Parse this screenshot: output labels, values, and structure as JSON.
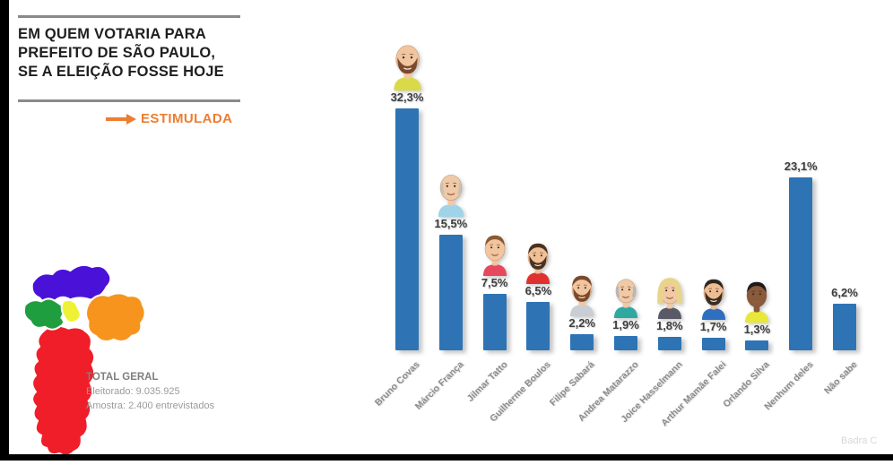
{
  "header": {
    "title_lines": [
      "EM QUEM VOTARIA PARA",
      "PREFEITO DE SÃO PAULO,",
      "SE A ELEIÇÃO FOSSE HOJE"
    ],
    "subtitle": "ESTIMULADA",
    "accent_color": "#ed7d31"
  },
  "summary": {
    "title": "TOTAL GERAL",
    "electorate": "Eleitorado: 9.035.925",
    "sample": "Amostra: 2.400 entrevistados"
  },
  "map": {
    "name": "sao-paulo-zones-map",
    "zone_colors": {
      "north": "#4a12d8",
      "east": "#f7941e",
      "center": "#eff234",
      "west": "#1e9e3e",
      "south": "#f01e28"
    }
  },
  "watermark": "Badra C",
  "chart_data": {
    "type": "bar",
    "title": "EM QUEM VOTARIA PARA PREFEITO DE SÃO PAULO, SE A ELEIÇÃO FOSSE HOJE — ESTIMULADA",
    "categories": [
      "Bruno Covas",
      "Márcio França",
      "Jilmar Tatto",
      "Guilherme Boulos",
      "Filipe Sabará",
      "Andrea Matarazzo",
      "Joice Hasselmann",
      "Arthur Mamãe Falei",
      "Orlando Silva",
      "Nenhum deles",
      "Não sabe"
    ],
    "values": [
      32.3,
      15.5,
      7.5,
      6.5,
      2.2,
      1.9,
      1.8,
      1.7,
      1.3,
      23.1,
      6.2
    ],
    "value_labels": [
      "32,3%",
      "15,5%",
      "7,5%",
      "6,5%",
      "2,2%",
      "1,9%",
      "1,8%",
      "1,7%",
      "1,3%",
      "23,1%",
      "6,2%"
    ],
    "xlabel": "",
    "ylabel": "",
    "ylim": [
      0,
      35
    ],
    "grid": false,
    "legend": false,
    "bar_color": "#2e74b5",
    "value_label_color": "#3f3f3f",
    "axis_label_color": "#8c8c8c",
    "avatars": [
      {
        "style": "bald",
        "skin": "#f2c59e",
        "hair": "#7a4a2b",
        "beard": "#7a4a2b",
        "shirt": "#d9d94a",
        "scale": 1.16
      },
      {
        "style": "balding",
        "skin": "#f0c9a6",
        "hair": "#c9c0b0",
        "beard": null,
        "shirt": "#9fd3e8",
        "scale": 1.08
      },
      {
        "style": "short",
        "skin": "#f2c59e",
        "hair": "#8a5a33",
        "beard": null,
        "shirt": "#e8485e",
        "scale": 1.0
      },
      {
        "style": "short",
        "skin": "#f0bf96",
        "hair": "#4a3220",
        "beard": "#4a3220",
        "shirt": "#e03131",
        "scale": 1.0
      },
      {
        "style": "short",
        "skin": "#f2c59e",
        "hair": "#7a4a2b",
        "beard": "#7a4a2b",
        "shirt": "#c9ced4",
        "scale": 1.0
      },
      {
        "style": "balding",
        "skin": "#f0c9a6",
        "hair": "#b8b8b8",
        "beard": null,
        "shirt": "#2fa8a0",
        "scale": 1.0
      },
      {
        "style": "bob",
        "skin": "#f2c9a4",
        "hair": "#e8d48a",
        "beard": null,
        "shirt": "#5a5a66",
        "scale": 1.0
      },
      {
        "style": "short",
        "skin": "#eebd92",
        "hair": "#2e2620",
        "beard": "#3a2e24",
        "shirt": "#2f6fbf",
        "scale": 1.0
      },
      {
        "style": "short",
        "skin": "#8a5a3c",
        "hair": "#1e1a16",
        "beard": null,
        "shirt": "#e8e83a",
        "scale": 1.0
      },
      null,
      null
    ]
  }
}
